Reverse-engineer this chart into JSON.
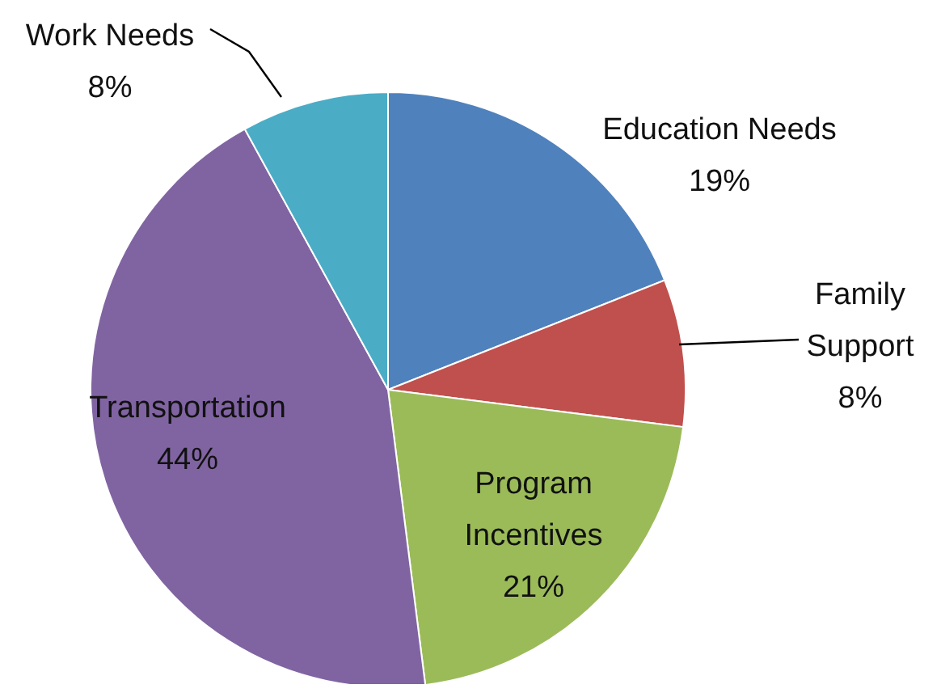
{
  "chart_data": {
    "type": "pie",
    "categories": [
      "Education Needs",
      "Family Support",
      "Program Incentives",
      "Transportation",
      "Work Needs"
    ],
    "values": [
      19,
      8,
      21,
      44,
      8
    ],
    "colors": [
      "#4f81bd",
      "#c0504d",
      "#9bbb59",
      "#8064a2",
      "#4bacc6"
    ],
    "value_labels": [
      "19%",
      "8%",
      "21%",
      "44%",
      "8%"
    ],
    "legend": false
  }
}
